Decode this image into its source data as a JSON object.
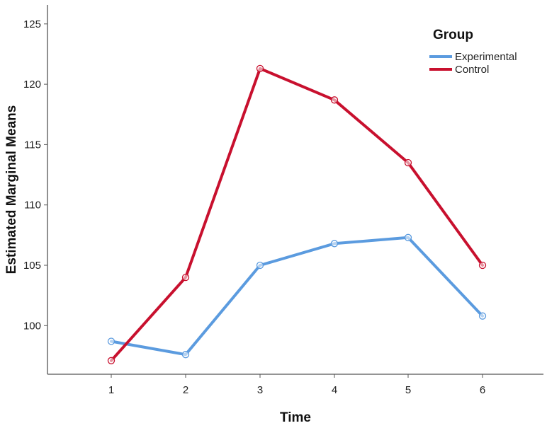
{
  "chart_data": {
    "type": "line",
    "title": "",
    "xlabel": "Time",
    "ylabel": "Estimated Marginal Means",
    "x": [
      "1",
      "2",
      "3",
      "4",
      "5",
      "6"
    ],
    "ylim": [
      96,
      126
    ],
    "y_ticks": [
      "100",
      "105",
      "110",
      "115",
      "120",
      "125"
    ],
    "grid": false,
    "markers": "open-circle",
    "legend": {
      "title": "Group",
      "placement": "top-right"
    },
    "series": [
      {
        "name": "Experimental",
        "color": "#5B9BDF",
        "values": [
          98.7,
          97.6,
          105.0,
          106.8,
          107.3,
          100.8
        ]
      },
      {
        "name": "Control",
        "color": "#C8102E",
        "values": [
          97.1,
          104.0,
          121.3,
          118.7,
          113.5,
          105.0
        ]
      }
    ]
  }
}
